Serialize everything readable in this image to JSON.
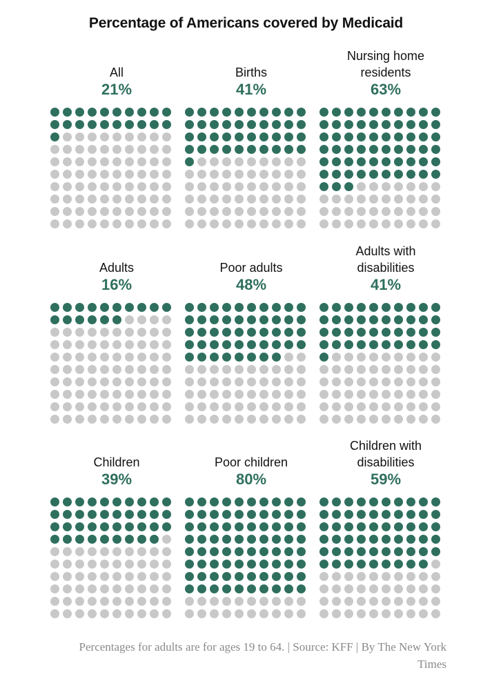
{
  "title": "Percentage of Americans covered by Medicaid",
  "colors": {
    "covered": "#2f6f5e",
    "not_covered": "#c8c8c8",
    "text": "#121212",
    "note": "#8a8a8a"
  },
  "chart_data": {
    "type": "waffle",
    "title": "Percentage of Americans covered by Medicaid",
    "unit": "%",
    "grid": "10x10 dots, 1 dot = 1%",
    "panels": [
      {
        "label": "All",
        "value": 21,
        "value_text": "21%"
      },
      {
        "label": "Births",
        "value": 41,
        "value_text": "41%"
      },
      {
        "label": "Nursing home residents",
        "value": 63,
        "value_text": "63%"
      },
      {
        "label": "Adults",
        "value": 16,
        "value_text": "16%"
      },
      {
        "label": "Poor adults",
        "value": 48,
        "value_text": "48%"
      },
      {
        "label": "Adults with disabilities",
        "value": 41,
        "value_text": "41%"
      },
      {
        "label": "Children",
        "value": 39,
        "value_text": "39%"
      },
      {
        "label": "Poor children",
        "value": 80,
        "value_text": "80%"
      },
      {
        "label": "Children with disabilities",
        "value": 59,
        "value_text": "59%"
      }
    ]
  },
  "note": "Percentages for adults are for ages 19 to 64. | Source: KFF | By The New York Times"
}
